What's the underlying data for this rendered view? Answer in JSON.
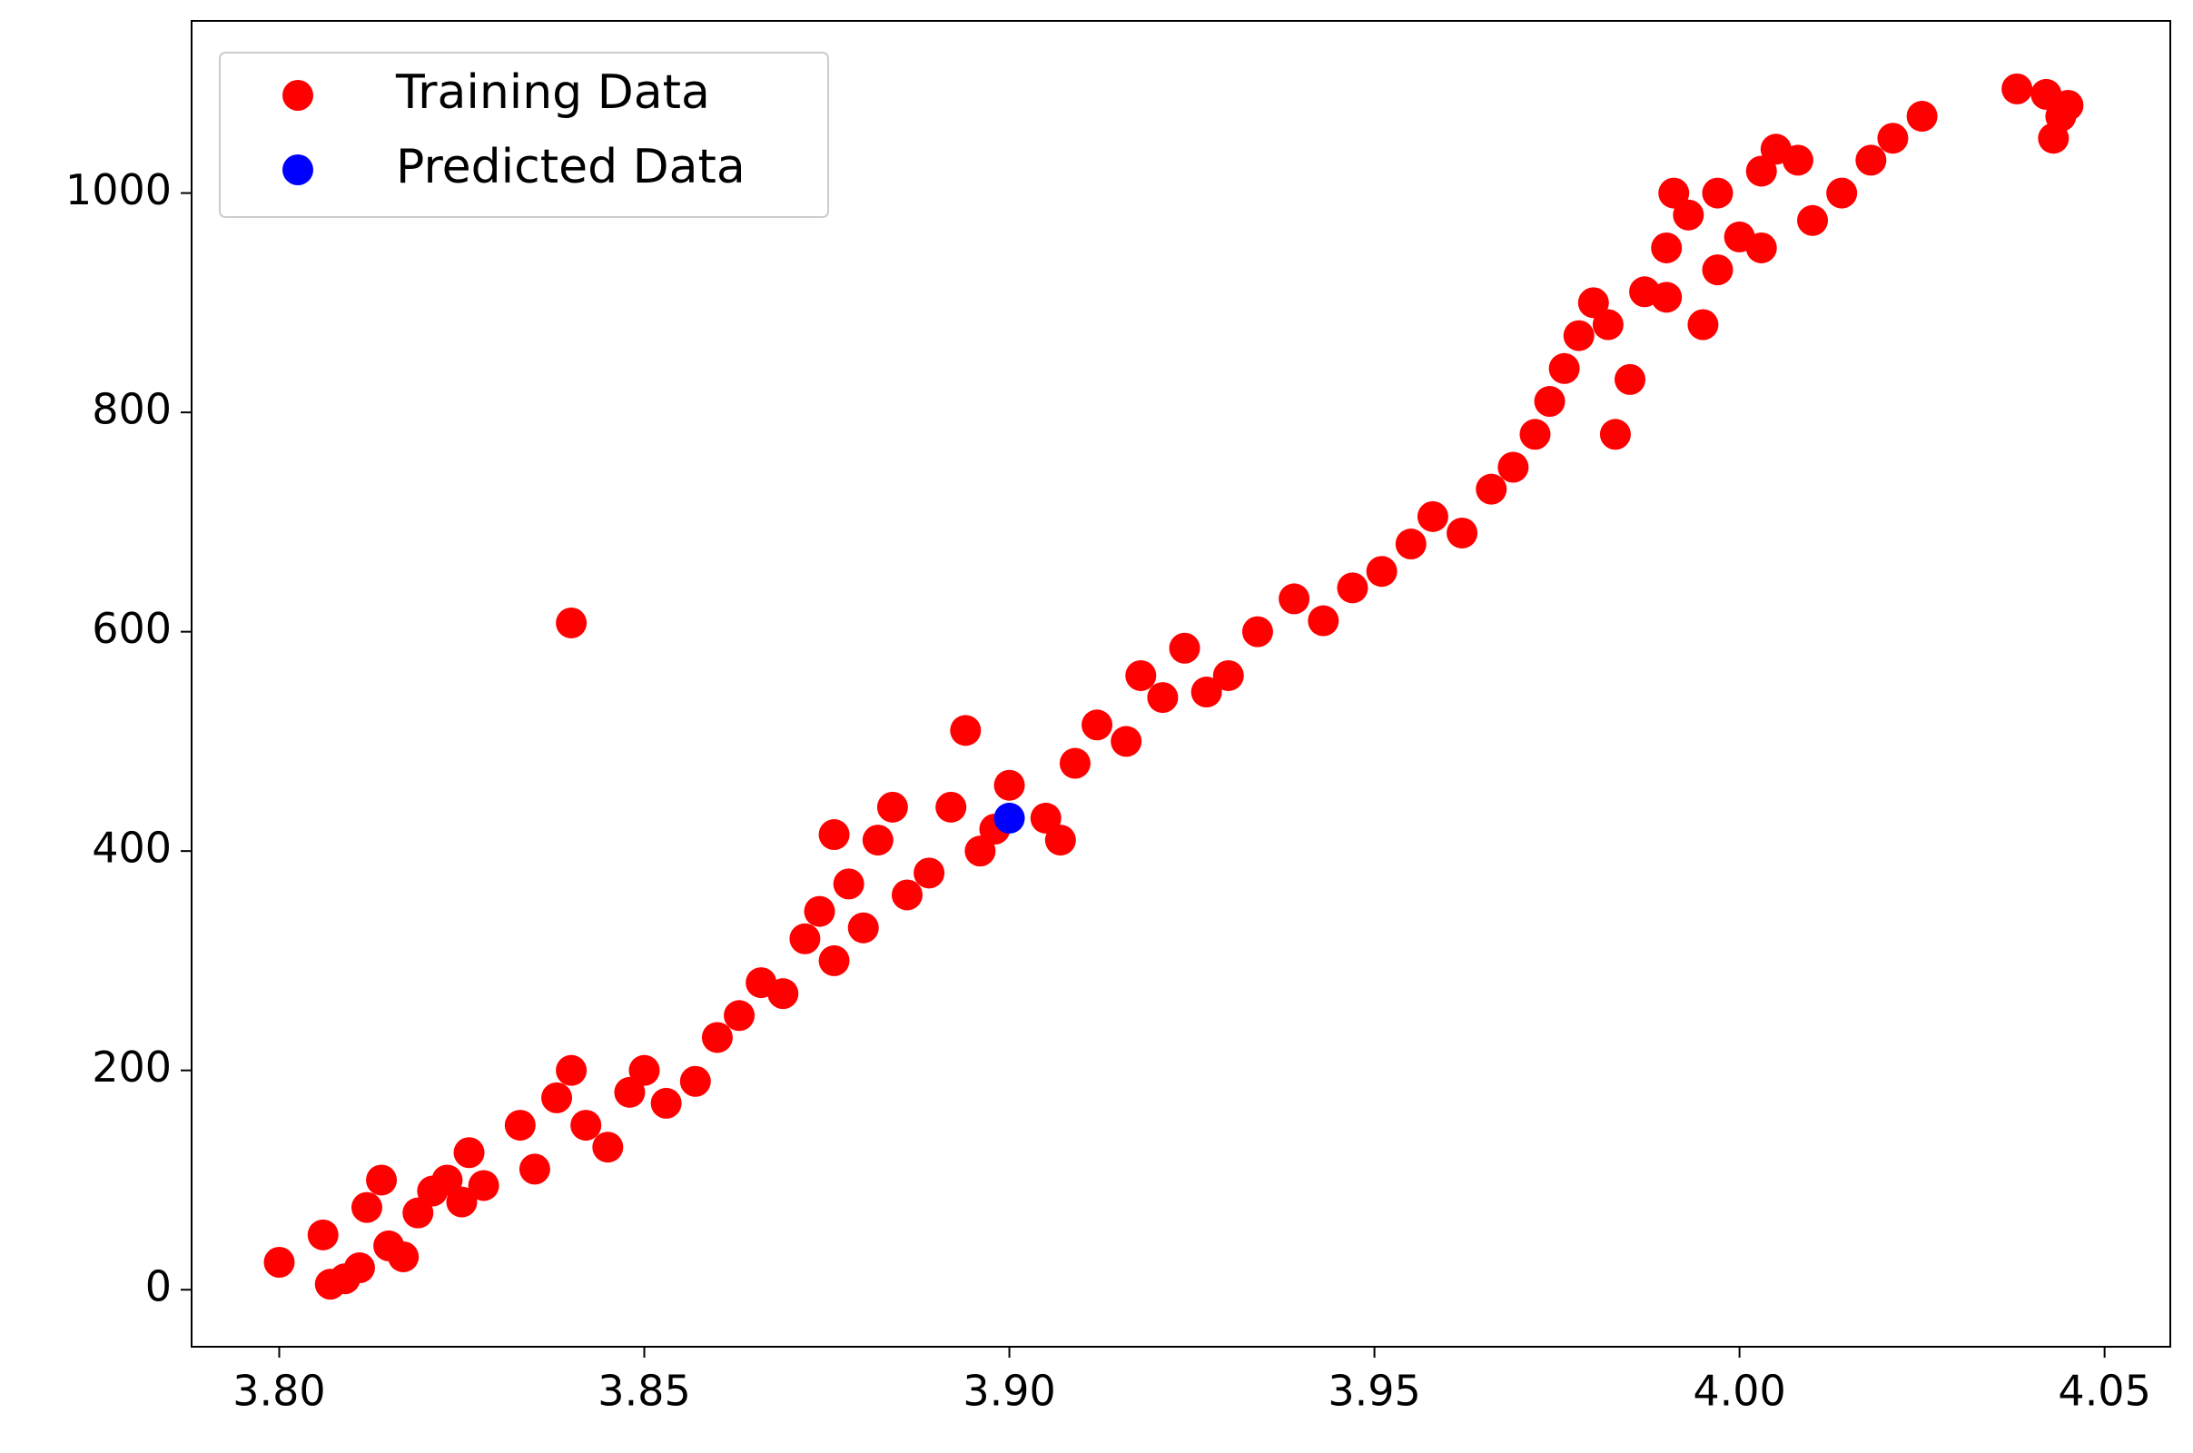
{
  "chart_data": {
    "type": "scatter",
    "series": [
      {
        "name": "Training Data",
        "color": "#ff0000",
        "x": [
          3.8,
          3.806,
          3.807,
          3.809,
          3.811,
          3.812,
          3.814,
          3.815,
          3.817,
          3.819,
          3.821,
          3.823,
          3.825,
          3.826,
          3.828,
          3.833,
          3.835,
          3.838,
          3.84,
          3.84,
          3.842,
          3.845,
          3.848,
          3.85,
          3.853,
          3.857,
          3.86,
          3.863,
          3.866,
          3.869,
          3.872,
          3.874,
          3.876,
          3.876,
          3.878,
          3.88,
          3.882,
          3.884,
          3.886,
          3.889,
          3.892,
          3.894,
          3.896,
          3.898,
          3.9,
          3.905,
          3.907,
          3.909,
          3.912,
          3.916,
          3.918,
          3.921,
          3.924,
          3.927,
          3.93,
          3.934,
          3.939,
          3.943,
          3.947,
          3.951,
          3.955,
          3.958,
          3.962,
          3.966,
          3.969,
          3.972,
          3.974,
          3.976,
          3.978,
          3.98,
          3.982,
          3.983,
          3.985,
          3.987,
          3.99,
          3.991,
          3.993,
          3.995,
          3.997,
          4.0,
          4.003,
          4.005,
          4.008,
          4.01,
          4.014,
          4.018,
          4.021,
          4.025,
          4.038,
          4.042,
          4.044,
          4.045,
          4.043,
          3.99,
          3.997,
          4.003
        ],
        "y": [
          25,
          50,
          5,
          10,
          20,
          75,
          100,
          40,
          30,
          70,
          90,
          100,
          80,
          125,
          95,
          150,
          110,
          175,
          200,
          608,
          150,
          130,
          180,
          200,
          170,
          190,
          230,
          250,
          280,
          270,
          320,
          345,
          300,
          415,
          370,
          330,
          410,
          440,
          360,
          380,
          440,
          510,
          400,
          420,
          460,
          430,
          410,
          480,
          515,
          500,
          560,
          540,
          585,
          545,
          560,
          600,
          630,
          610,
          640,
          655,
          680,
          705,
          690,
          730,
          750,
          780,
          810,
          840,
          870,
          900,
          880,
          780,
          830,
          910,
          950,
          1000,
          980,
          880,
          1000,
          960,
          1020,
          1040,
          1030,
          975,
          1000,
          1030,
          1050,
          1070,
          1095,
          1090,
          1070,
          1080,
          1050,
          905,
          930,
          950
        ]
      },
      {
        "name": "Predicted Data",
        "color": "#0000ff",
        "x": [
          3.9
        ],
        "y": [
          430
        ]
      }
    ],
    "xlim": [
      3.788,
      4.059
    ],
    "xticks": [
      {
        "value": 3.8,
        "label": "3.80"
      },
      {
        "value": 3.85,
        "label": "3.85"
      },
      {
        "value": 3.9,
        "label": "3.90"
      },
      {
        "value": 3.95,
        "label": "3.95"
      },
      {
        "value": 4.0,
        "label": "4.00"
      },
      {
        "value": 4.05,
        "label": "4.05"
      }
    ],
    "ylim": [
      -52,
      1157
    ],
    "yticks": [
      0,
      200,
      400,
      600,
      800,
      1000
    ],
    "grid": false,
    "legend": "upper-left"
  }
}
